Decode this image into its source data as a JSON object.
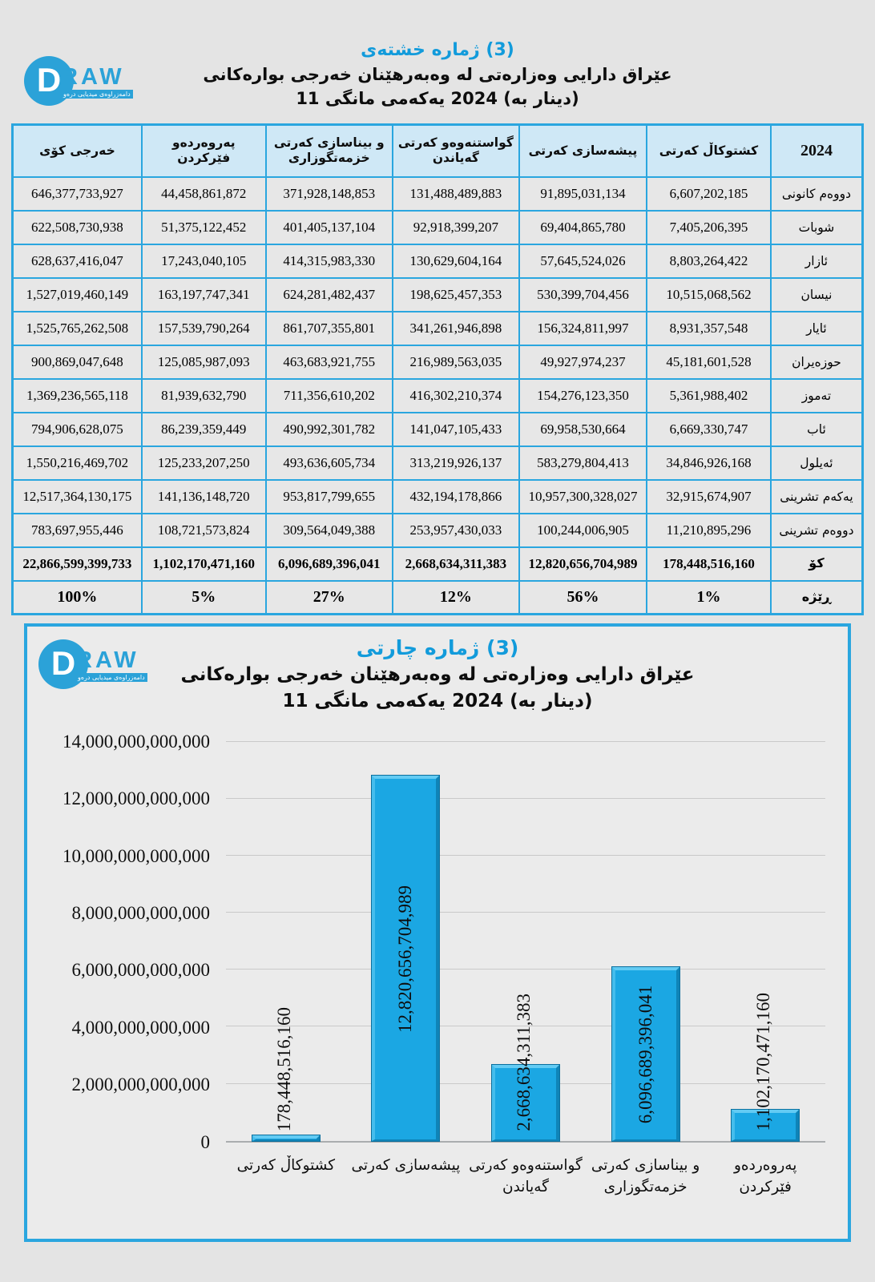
{
  "logo": {
    "letter": "D",
    "word": "RAW",
    "tagline": "دامەزراوەی میدیایی درەو"
  },
  "table_section": {
    "title1": "خشتەی‎ ژماره‎ (3)",
    "title2": "بوارەکانی‎ خەرجی‎ وەبەرهێنان‎ له‎ وەزارەتی‎ دارایی‎ عێراق‎",
    "title3": "11 مانگی‎ یەکەمی‎ 2024 (به‎ دینار)‎",
    "headers": {
      "year": "2024",
      "agri": "کەرتی‎ کشتوکاڵ‎",
      "ind": "کەرتی‎ پیشەسازی‎",
      "tra": "کەرتی‎ گواستنەوەو‎ گەیاندن‎",
      "con": "کەرتی‎ بیناسازی‎ و‎ خزمەتگوزاری‎",
      "edu": "پەروەردەو‎ فێرکردن‎",
      "tot": "کۆی‎ خەرجی‎"
    },
    "rows": [
      {
        "month": "کانونی‎ دووەم‎",
        "agri": "6,607,202,185",
        "ind": "91,895,031,134",
        "tra": "131,488,489,883",
        "con": "371,928,148,853",
        "edu": "44,458,861,872",
        "tot": "646,377,733,927"
      },
      {
        "month": "شوبات",
        "agri": "7,405,206,395",
        "ind": "69,404,865,780",
        "tra": "92,918,399,207",
        "con": "401,405,137,104",
        "edu": "51,375,122,452",
        "tot": "622,508,730,938"
      },
      {
        "month": "ئازار",
        "agri": "8,803,264,422",
        "ind": "57,645,524,026",
        "tra": "130,629,604,164",
        "con": "414,315,983,330",
        "edu": "17,243,040,105",
        "tot": "628,637,416,047"
      },
      {
        "month": "نیسان",
        "agri": "10,515,068,562",
        "ind": "530,399,704,456",
        "tra": "198,625,457,353",
        "con": "624,281,482,437",
        "edu": "163,197,747,341",
        "tot": "1,527,019,460,149"
      },
      {
        "month": "ئایار",
        "agri": "8,931,357,548",
        "ind": "156,324,811,997",
        "tra": "341,261,946,898",
        "con": "861,707,355,801",
        "edu": "157,539,790,264",
        "tot": "1,525,765,262,508"
      },
      {
        "month": "حوزەیران",
        "agri": "45,181,601,528",
        "ind": "49,927,974,237",
        "tra": "216,989,563,035",
        "con": "463,683,921,755",
        "edu": "125,085,987,093",
        "tot": "900,869,047,648"
      },
      {
        "month": "تەموز",
        "agri": "5,361,988,402",
        "ind": "154,276,123,350",
        "tra": "416,302,210,374",
        "con": "711,356,610,202",
        "edu": "81,939,632,790",
        "tot": "1,369,236,565,118"
      },
      {
        "month": "ئاب",
        "agri": "6,669,330,747",
        "ind": "69,958,530,664",
        "tra": "141,047,105,433",
        "con": "490,992,301,782",
        "edu": "86,239,359,449",
        "tot": "794,906,628,075"
      },
      {
        "month": "ئەیلول",
        "agri": "34,846,926,168",
        "ind": "583,279,804,413",
        "tra": "313,219,926,137",
        "con": "493,636,605,734",
        "edu": "125,233,207,250",
        "tot": "1,550,216,469,702"
      },
      {
        "month": "تشرینی‎ یەکەم‎",
        "agri": "32,915,674,907",
        "ind": "10,957,300,328,027",
        "tra": "432,194,178,866",
        "con": "953,817,799,655",
        "edu": "141,136,148,720",
        "tot": "12,517,364,130,175"
      },
      {
        "month": "تشرینی‎ دووەم‎",
        "agri": "11,210,895,296",
        "ind": "100,244,006,905",
        "tra": "253,957,430,033",
        "con": "309,564,049,388",
        "edu": "108,721,573,824",
        "tot": "783,697,955,446"
      }
    ],
    "total_row": {
      "label": "کۆ",
      "agri": "178,448,516,160",
      "ind": "12,820,656,704,989",
      "tra": "2,668,634,311,383",
      "con": "6,096,689,396,041",
      "edu": "1,102,170,471,160",
      "tot": "22,866,599,399,733"
    },
    "ratio_row": {
      "label": "ڕێژه",
      "agri": "1%",
      "ind": "56%",
      "tra": "12%",
      "con": "27%",
      "edu": "5%",
      "tot": "100%"
    }
  },
  "chart_section": {
    "title1": "چارتی‎ ژماره‎ (3)",
    "title2": "بوارەکانی‎ خەرجی‎ وەبەرهێنان‎ له‎ وەزارەتی‎ دارایی‎ عێراق‎",
    "title3": "11 مانگی‎ یەکەمی‎ 2024 (به‎ دینار)‎"
  },
  "chart_data": {
    "type": "bar",
    "title": "چارتی ژماره (3) — بوارەکانی خەرجی وەبەرهێنان له وەزارەتی دارایی عێراق — 11 مانگی یەکەمی 2024 (به دینار)",
    "categories": [
      "کەرتی‎ کشتوکاڵ‎",
      "کەرتی‎ پیشەسازی‎",
      "کەرتی‎ گواستنەوەو‎ گەیاندن‎",
      "کەرتی‎ بیناسازی‎ و‎ خزمەتگوزاری‎",
      "پەروەردەو‎ فێرکردن‎"
    ],
    "values": [
      178448516160,
      12820656704989,
      2668634311383,
      6096689396041,
      1102170471160
    ],
    "value_labels": [
      "178,448,516,160",
      "12,820,656,704,989",
      "2,668,634,311,383",
      "6,096,689,396,041",
      "1,102,170,471,160"
    ],
    "xlabel": "",
    "ylabel": "",
    "ylim": [
      0,
      14000000000000
    ],
    "ytick_labels": [
      "0",
      "2,000,000,000,000",
      "4,000,000,000,000",
      "6,000,000,000,000",
      "8,000,000,000,000",
      "10,000,000,000,000",
      "12,000,000,000,000",
      "14,000,000,000,000"
    ],
    "grid": true,
    "legend": false,
    "bar_color": "#1BA7E3"
  },
  "colors": {
    "accent_blue": "#129BDB",
    "border_blue": "#2AA6DF",
    "header_bg": "#CFE8F6",
    "cell_bg": "#E7E7E7",
    "page_bg": "#E4E4E4",
    "bar_fill": "#1BA7E3"
  }
}
